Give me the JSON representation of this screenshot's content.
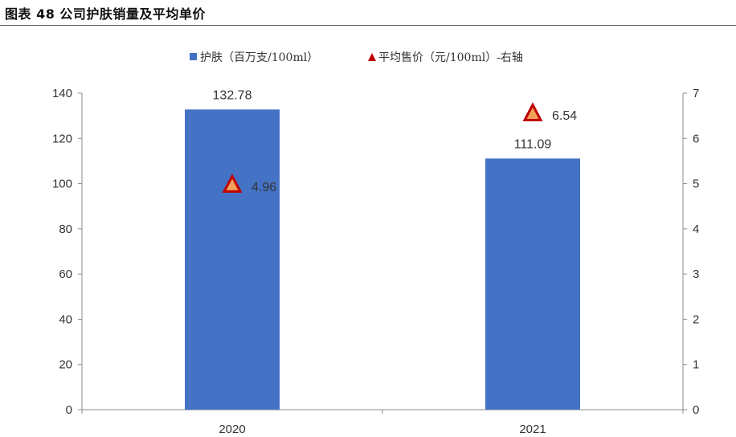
{
  "figure": {
    "title": "图表 48  公司护肤销量及平均单价"
  },
  "chart_data": {
    "type": "bar",
    "categories": [
      "2020",
      "2021"
    ],
    "series": [
      {
        "name": "护肤（百万支/100ml）",
        "chart_type": "bar",
        "axis": "left",
        "values": [
          132.78,
          111.09
        ],
        "labels": [
          "132.78",
          "111.09"
        ],
        "color": "#4472C4"
      },
      {
        "name": "平均售价（元/100ml）-右轴",
        "chart_type": "scatter",
        "axis": "right",
        "values": [
          4.96,
          6.54
        ],
        "labels": [
          "4.96",
          "6.54"
        ],
        "color": "#F4A05A",
        "marker": "triangle",
        "marker_edge": "#C00000"
      }
    ],
    "ylim": [
      0,
      140
    ],
    "y_ticks": [
      "0",
      "20",
      "40",
      "60",
      "80",
      "100",
      "120",
      "140"
    ],
    "y2lim": [
      0,
      7
    ],
    "y2_ticks": [
      "0",
      "1",
      "2",
      "3",
      "4",
      "5",
      "6",
      "7"
    ],
    "legend": "top",
    "grid": false
  }
}
